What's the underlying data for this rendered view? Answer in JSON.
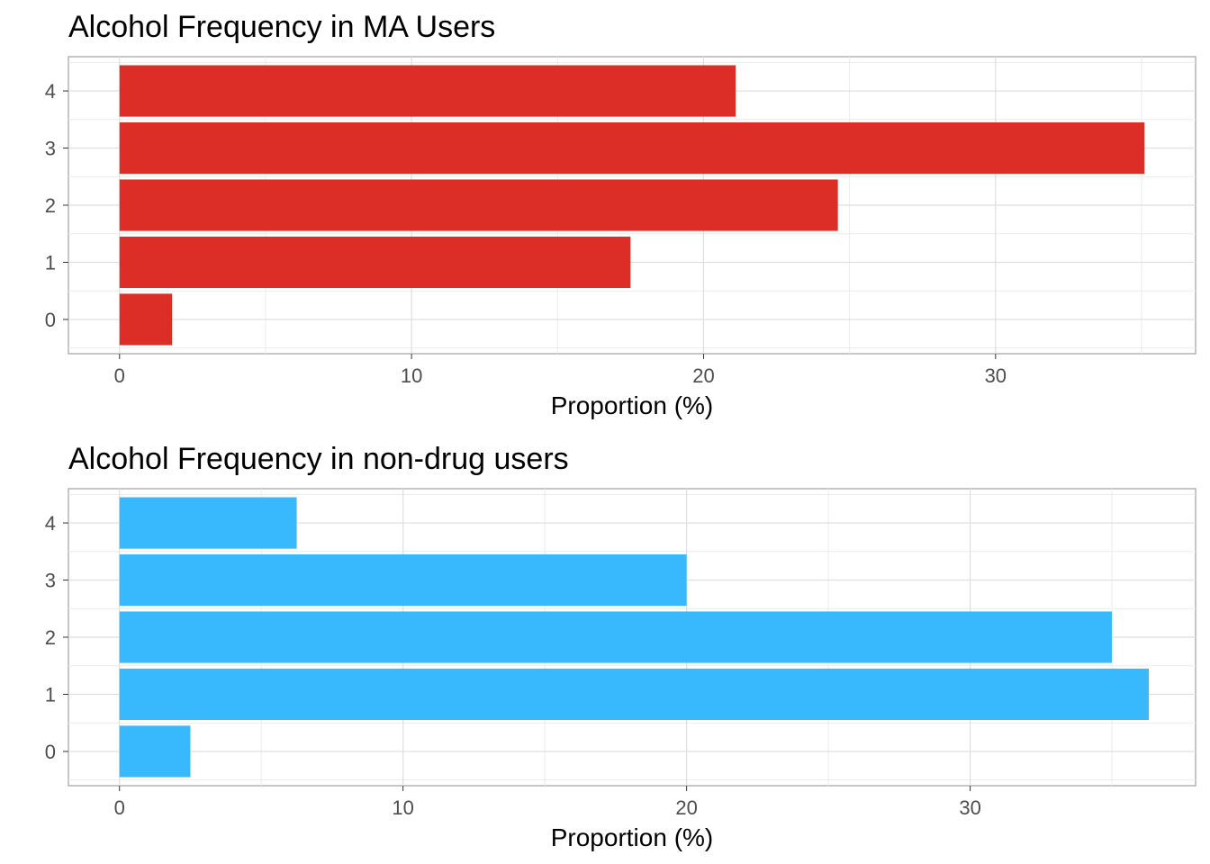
{
  "chart_data": [
    {
      "type": "bar",
      "orientation": "horizontal",
      "title": "Alcohol Frequency in MA Users",
      "xlabel": "Proportion (%)",
      "ylabel": "",
      "categories": [
        "0",
        "1",
        "2",
        "3",
        "4"
      ],
      "values": [
        1.8,
        17.5,
        24.6,
        35.1,
        21.1
      ],
      "xlim": [
        -1.75,
        36.85
      ],
      "xticks": [
        "0",
        "10",
        "20",
        "30"
      ],
      "grid": true,
      "color": "#dc2e27"
    },
    {
      "type": "bar",
      "orientation": "horizontal",
      "title": "Alcohol Frequency in non-drug users",
      "xlabel": "Proportion (%)",
      "ylabel": "",
      "categories": [
        "0",
        "1",
        "2",
        "3",
        "4"
      ],
      "values": [
        2.5,
        36.3,
        35.0,
        20.0,
        6.25
      ],
      "xlim": [
        -1.8,
        37.95
      ],
      "xticks": [
        "0",
        "10",
        "20",
        "30"
      ],
      "grid": true,
      "color": "#38b8fd"
    }
  ]
}
